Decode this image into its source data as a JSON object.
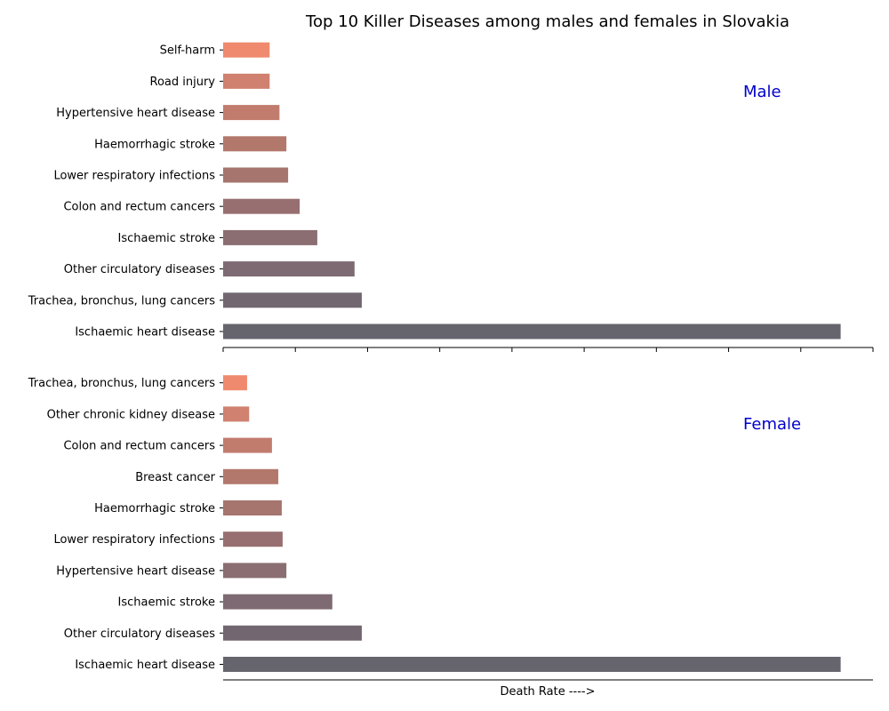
{
  "chart_data": {
    "type": "bar",
    "orientation": "horizontal",
    "title": "Top 10 Killer Diseases among males and females in Slovakia",
    "xlabel": "Death Rate ---->",
    "panel_label_color": "#0000cc",
    "bar_colors": [
      "#66656e",
      "#726770",
      "#7e6a72",
      "#8b6e72",
      "#986f70",
      "#a5756e",
      "#b3786c",
      "#c17c6e",
      "#d0816f",
      "#f08a6e"
    ],
    "xlim": [
      0,
      225
    ],
    "panels": [
      {
        "label": "Male",
        "categories": [
          "Ischaemic heart disease",
          "Trachea, bronchus, lung cancers",
          "Other circulatory diseases",
          "Ischaemic stroke",
          "Colon and rectum cancers",
          "Lower respiratory infections",
          "Haemorrhagic stroke",
          "Hypertensive heart disease",
          "Road injury",
          "Self-harm"
        ],
        "values": [
          213.8,
          48.0,
          45.5,
          32.6,
          26.5,
          22.5,
          21.9,
          19.5,
          16.1,
          16.1
        ]
      },
      {
        "label": "Female",
        "categories": [
          "Ischaemic heart disease",
          "Other circulatory diseases",
          "Ischaemic stroke",
          "Hypertensive heart disease",
          "Lower respiratory infections",
          "Haemorrhagic stroke",
          "Breast cancer",
          "Colon and rectum cancers",
          "Other chronic kidney disease",
          "Trachea, bronchus, lung cancers"
        ],
        "values": [
          213.8,
          48.0,
          37.8,
          21.9,
          20.6,
          20.3,
          19.1,
          16.9,
          9.0,
          8.3
        ]
      }
    ]
  }
}
